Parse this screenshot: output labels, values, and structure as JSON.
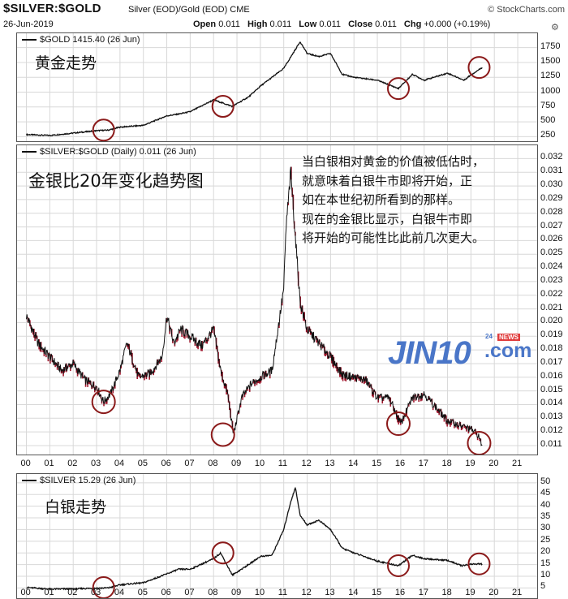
{
  "header": {
    "title": "$SILVER:$GOLD",
    "subtitle": "Silver (EOD)/Gold (EOD)  CME",
    "brand": "© StockCharts.com",
    "date": "26-Jun-2019",
    "open_label": "Open",
    "open": "0.011",
    "high_label": "High",
    "high": "0.011",
    "low_label": "Low",
    "low": "0.011",
    "close_label": "Close",
    "close": "0.011",
    "chg_label": "Chg",
    "chg": "+0.000 (+0.19%)"
  },
  "annotations": {
    "gold_trend": "黄金走势",
    "ratio_trend": "金银比20年变化趋势图",
    "silver_trend": "白银走势",
    "note_lines": [
      "当白银相对黄金的价值被低估时，",
      "就意味着白银牛市即将开始，正",
      "如在本世纪初所看到的那样。",
      "现在的金银比显示，白银牛市即",
      "将开始的可能性比此前几次更大。"
    ],
    "watermark": "JIN10",
    "watermark_suffix": ".com",
    "watermark_badge": "NEWS",
    "watermark_num": "24",
    "colors": {
      "circle": "#8b1a1a",
      "ratio_down": "#a0162c",
      "watermark": "#4a76c8"
    }
  },
  "chart_data": [
    {
      "type": "line",
      "label": "$GOLD 1415.40 (26 Jun)",
      "x": [
        2000.0,
        2001.0,
        2002.0,
        2003.0,
        2003.5,
        2004.0,
        2005.0,
        2006.0,
        2006.5,
        2007.0,
        2008.0,
        2008.8,
        2009.5,
        2010.0,
        2011.0,
        2011.7,
        2012.0,
        2012.5,
        2013.0,
        2013.5,
        2014.0,
        2015.0,
        2015.9,
        2016.5,
        2017.0,
        2018.0,
        2018.7,
        2019.0,
        2019.48
      ],
      "y": [
        285,
        270,
        310,
        350,
        360,
        410,
        440,
        600,
        630,
        670,
        870,
        760,
        920,
        1100,
        1400,
        1850,
        1650,
        1600,
        1650,
        1300,
        1250,
        1200,
        1060,
        1300,
        1200,
        1320,
        1200,
        1290,
        1415
      ],
      "ylim": [
        200,
        1800
      ],
      "yticks": [
        250,
        500,
        750,
        1000,
        1250,
        1500,
        1750
      ]
    },
    {
      "type": "line",
      "label": "$SILVER:$GOLD (Daily) 0.011 (26 Jun)",
      "x": [
        2000.0,
        2000.5,
        2001.0,
        2001.5,
        2002.0,
        2002.5,
        2003.0,
        2003.3,
        2003.6,
        2004.0,
        2004.3,
        2004.8,
        2005.3,
        2005.8,
        2006.0,
        2006.3,
        2006.6,
        2007.0,
        2007.5,
        2008.0,
        2008.3,
        2008.6,
        2008.85,
        2009.2,
        2009.6,
        2010.0,
        2010.5,
        2011.0,
        2011.1,
        2011.3,
        2011.5,
        2011.7,
        2012.0,
        2012.5,
        2013.0,
        2013.5,
        2014.0,
        2014.5,
        2015.0,
        2015.5,
        2016.0,
        2016.5,
        2017.0,
        2017.5,
        2018.0,
        2018.5,
        2019.0,
        2019.3,
        2019.48
      ],
      "y": [
        0.0205,
        0.0185,
        0.0175,
        0.0165,
        0.017,
        0.0158,
        0.0153,
        0.0142,
        0.0148,
        0.0165,
        0.0185,
        0.016,
        0.0163,
        0.0175,
        0.0205,
        0.0185,
        0.0195,
        0.019,
        0.0183,
        0.0195,
        0.0165,
        0.0148,
        0.0118,
        0.0145,
        0.0155,
        0.016,
        0.0165,
        0.0225,
        0.027,
        0.031,
        0.0262,
        0.0215,
        0.0195,
        0.0185,
        0.0175,
        0.0162,
        0.016,
        0.0158,
        0.0145,
        0.0145,
        0.0126,
        0.0145,
        0.0148,
        0.0138,
        0.0128,
        0.0125,
        0.0122,
        0.0118,
        0.011
      ],
      "ylim": [
        0.0107,
        0.0325
      ],
      "yticks": [
        0.011,
        0.012,
        0.013,
        0.014,
        0.015,
        0.016,
        0.017,
        0.018,
        0.019,
        0.02,
        0.021,
        0.022,
        0.023,
        0.024,
        0.025,
        0.026,
        0.027,
        0.028,
        0.029,
        0.03,
        0.031,
        0.032
      ],
      "ytick_labels": [
        "0.011",
        "0.012",
        "0.013",
        "0.014",
        "0.015",
        "0.016",
        "0.017",
        "0.018",
        "0.019",
        "0.020",
        "0.021",
        "0.022",
        "0.023",
        "0.024",
        "0.025",
        "0.026",
        "0.027",
        "0.028",
        "0.029",
        "0.030",
        "0.031",
        "0.032"
      ]
    },
    {
      "type": "line",
      "label": "$SILVER 15.29 (26 Jun)",
      "x": [
        2000.0,
        2001.0,
        2002.0,
        2003.0,
        2003.5,
        2004.0,
        2004.5,
        2005.0,
        2006.0,
        2006.5,
        2007.0,
        2008.0,
        2008.3,
        2008.8,
        2009.5,
        2010.0,
        2010.5,
        2011.0,
        2011.3,
        2011.5,
        2011.7,
        2012.0,
        2012.5,
        2013.0,
        2013.5,
        2014.0,
        2015.0,
        2015.9,
        2016.5,
        2017.0,
        2018.0,
        2018.6,
        2019.0,
        2019.48
      ],
      "y": [
        5.2,
        4.5,
        4.6,
        4.9,
        5.0,
        6.3,
        6.8,
        7.2,
        11.0,
        13.0,
        13.0,
        17.5,
        20.0,
        10.5,
        15.0,
        18.5,
        19.0,
        30.0,
        42.0,
        48.0,
        36.0,
        32.0,
        34.0,
        30.0,
        22.0,
        20.0,
        16.5,
        14.5,
        19.0,
        17.5,
        16.8,
        14.5,
        15.2,
        15.29
      ],
      "ylim": [
        2,
        51
      ],
      "yticks": [
        5,
        10,
        15,
        20,
        25,
        30,
        35,
        40,
        45,
        50
      ]
    }
  ],
  "x_axis": {
    "range": [
      1999.6,
      2021.9
    ],
    "ticks": [
      2000,
      2001,
      2002,
      2003,
      2004,
      2005,
      2006,
      2007,
      2008,
      2009,
      2010,
      2011,
      2012,
      2013,
      2014,
      2015,
      2016,
      2017,
      2018,
      2019,
      2020,
      2021
    ],
    "tick_labels": [
      "00",
      "01",
      "02",
      "03",
      "04",
      "05",
      "06",
      "07",
      "08",
      "09",
      "10",
      "11",
      "12",
      "13",
      "14",
      "15",
      "16",
      "17",
      "18",
      "19",
      "20",
      "21"
    ]
  },
  "highlight_years": [
    2003.3,
    2008.4,
    2015.9,
    2019.35
  ]
}
